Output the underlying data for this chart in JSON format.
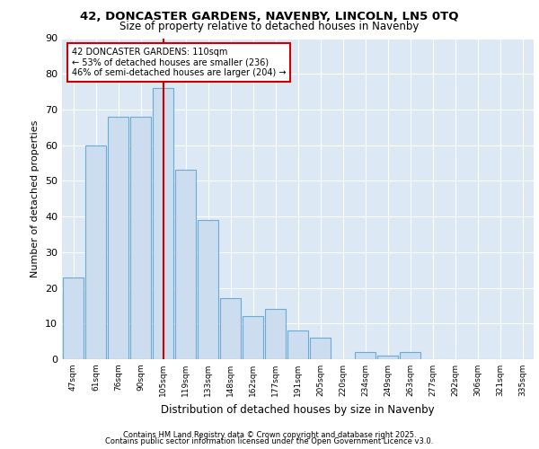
{
  "title1": "42, DONCASTER GARDENS, NAVENBY, LINCOLN, LN5 0TQ",
  "title2": "Size of property relative to detached houses in Navenby",
  "xlabel": "Distribution of detached houses by size in Navenby",
  "ylabel": "Number of detached properties",
  "categories": [
    "47sqm",
    "61sqm",
    "76sqm",
    "90sqm",
    "105sqm",
    "119sqm",
    "133sqm",
    "148sqm",
    "162sqm",
    "177sqm",
    "191sqm",
    "205sqm",
    "220sqm",
    "234sqm",
    "249sqm",
    "263sqm",
    "277sqm",
    "292sqm",
    "306sqm",
    "321sqm",
    "335sqm"
  ],
  "values": [
    23,
    60,
    68,
    68,
    76,
    53,
    39,
    17,
    12,
    14,
    8,
    6,
    0,
    2,
    1,
    2,
    0,
    0,
    0,
    0,
    0
  ],
  "bar_color": "#ccddf0",
  "bar_edge_color": "#6aaad4",
  "vline_x": 4,
  "vline_color": "#cc0000",
  "annotation_text": "42 DONCASTER GARDENS: 110sqm\n← 53% of detached houses are smaller (236)\n46% of semi-detached houses are larger (204) →",
  "annotation_box_color": "#ffffff",
  "annotation_box_edge": "#cc0000",
  "ylim": [
    0,
    90
  ],
  "yticks": [
    0,
    10,
    20,
    30,
    40,
    50,
    60,
    70,
    80,
    90
  ],
  "background_color": "#dce9f5",
  "footer1": "Contains HM Land Registry data © Crown copyright and database right 2025.",
  "footer2": "Contains public sector information licensed under the Open Government Licence v3.0."
}
